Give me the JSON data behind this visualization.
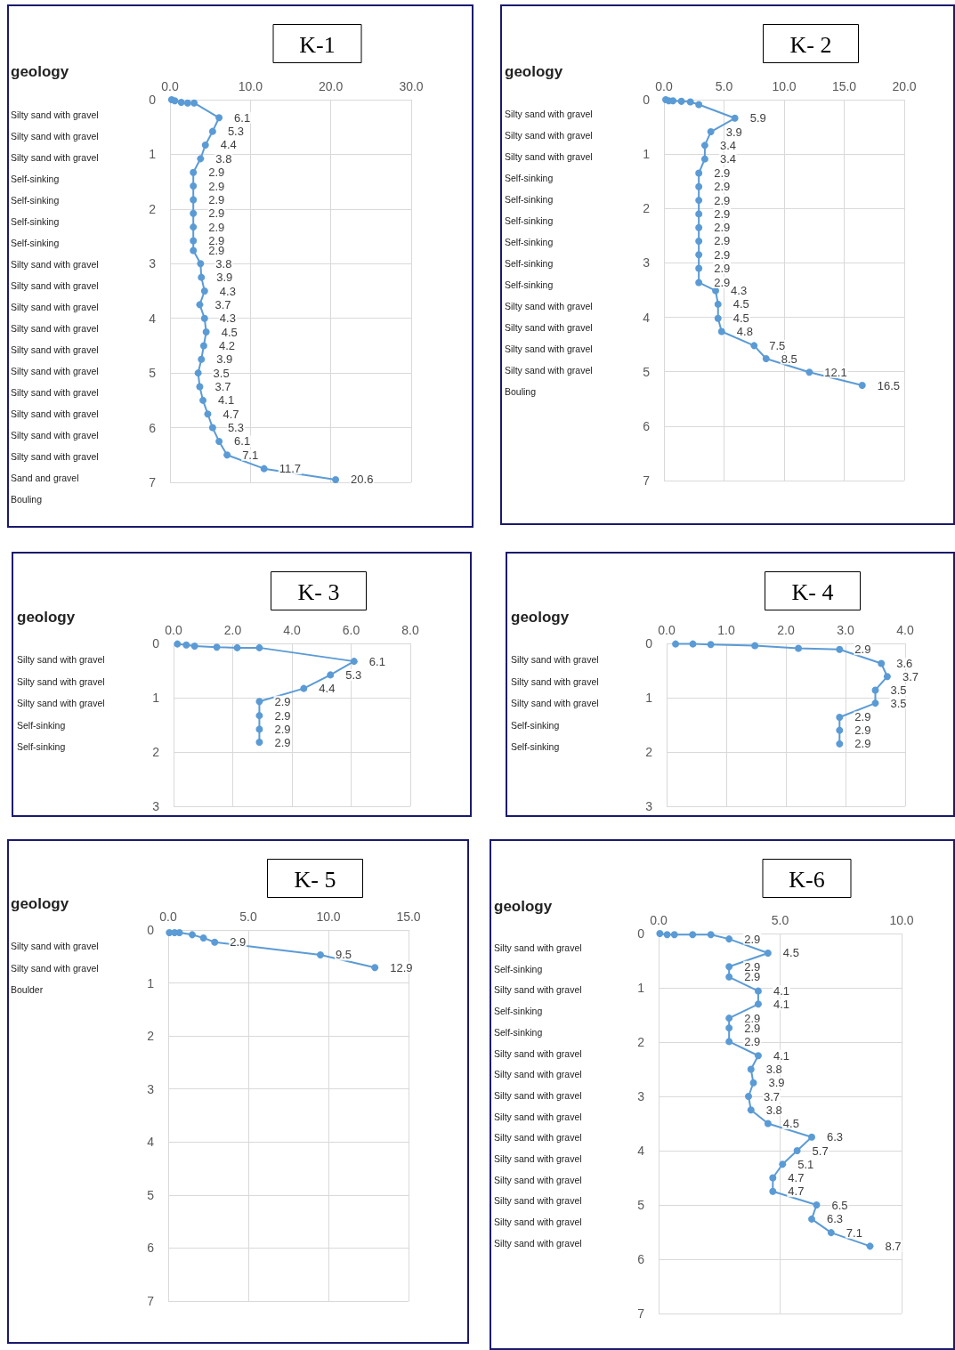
{
  "chart_data": [
    {
      "type": "line",
      "orientation": "horizontal",
      "title": "K-1",
      "annotations": [
        "geology",
        "Silty sand with gravel",
        "Silty sand with gravel",
        "Silty sand with gravel",
        "Self-sinking",
        "Self-sinking",
        "Self-sinking",
        "Self-sinking",
        "Silty sand with gravel",
        "Silty sand with gravel",
        "Silty sand with gravel",
        "Silty sand with gravel",
        "Silty sand with gravel",
        "Silty sand with gravel",
        "Silty sand with gravel",
        "Silty sand with gravel",
        "Silty sand with gravel",
        "Silty sand with gravel",
        "Sand and gravel",
        "Bouling"
      ],
      "series": [
        {
          "color": "#5b9bd5",
          "values": [
            0.2,
            0.6,
            1.4,
            2.2,
            3.0,
            6.1,
            5.3,
            4.4,
            3.8,
            2.9,
            2.9,
            2.9,
            2.9,
            2.9,
            2.9,
            2.9,
            3.8,
            3.9,
            4.3,
            3.7,
            4.3,
            4.5,
            4.2,
            3.9,
            3.5,
            3.7,
            4.1,
            4.7,
            5.3,
            6.1,
            7.1,
            11.7,
            20.6
          ],
          "x": [
            0,
            0.02,
            0.05,
            0.06,
            0.06,
            0.33,
            0.58,
            0.83,
            1.08,
            1.33,
            1.58,
            1.83,
            2.08,
            2.33,
            2.58,
            2.76,
            3.0,
            3.25,
            3.5,
            3.75,
            4.0,
            4.25,
            4.5,
            4.75,
            5.0,
            5.25,
            5.5,
            5.75,
            6.0,
            6.25,
            6.5,
            6.75,
            6.95
          ],
          "value_labels": [
            null,
            null,
            null,
            null,
            null,
            "6.1",
            "5.3",
            "4.4",
            "3.8",
            "2.9",
            "2.9",
            "2.9",
            "2.9",
            "2.9",
            "2.9",
            "2.9",
            "3.8",
            "3.9",
            "4.3",
            "3.7",
            "4.3",
            "4.5",
            "4.2",
            "3.9",
            "3.5",
            "3.7",
            "4.1",
            "4.7",
            "5.3",
            "6.1",
            "7.1",
            "11.7",
            "20.6"
          ]
        }
      ],
      "xlim": [
        0,
        30
      ],
      "xticks": [
        {
          "value": 0,
          "label": "0.0"
        },
        {
          "value": 10,
          "label": "10.0"
        },
        {
          "value": 20,
          "label": "20.0"
        },
        {
          "value": 30,
          "label": "30.0"
        }
      ],
      "ylim": [
        7,
        0
      ],
      "yticks": [
        0,
        1,
        2,
        3,
        4,
        5,
        6,
        7
      ],
      "grid": true,
      "marker": "circle",
      "line_style": "solid"
    },
    {
      "type": "line",
      "orientation": "horizontal",
      "title": "K- 2",
      "annotations": [
        "geology",
        "Silty sand with gravel",
        "Silty sand with gravel",
        "Silty sand with gravel",
        "Self-sinking",
        "Self-sinking",
        "Self-sinking",
        "Self-sinking",
        "Self-sinking",
        "Self-sinking",
        "Silty sand with gravel",
        "Silty sand with gravel",
        "Silty sand with gravel",
        "Silty sand with gravel",
        "Bouling"
      ],
      "series": [
        {
          "color": "#5b9bd5",
          "values": [
            0.15,
            0.4,
            0.75,
            1.45,
            2.2,
            2.9,
            5.9,
            3.9,
            3.4,
            3.4,
            2.9,
            2.9,
            2.9,
            2.9,
            2.9,
            2.9,
            2.9,
            2.9,
            2.9,
            4.3,
            4.5,
            4.5,
            4.8,
            7.5,
            8.5,
            12.1,
            16.5
          ],
          "x": [
            0,
            0.02,
            0.02,
            0.03,
            0.04,
            0.09,
            0.34,
            0.59,
            0.84,
            1.09,
            1.35,
            1.6,
            1.85,
            2.1,
            2.35,
            2.6,
            2.85,
            3.1,
            3.36,
            3.51,
            3.76,
            4.02,
            4.26,
            4.52,
            4.76,
            5.01,
            5.25
          ],
          "value_labels": [
            null,
            null,
            null,
            null,
            null,
            null,
            "5.9",
            "3.9",
            "3.4",
            "3.4",
            "2.9",
            "2.9",
            "2.9",
            "2.9",
            "2.9",
            "2.9",
            "2.9",
            "2.9",
            "2.9",
            "4.3",
            "4.5",
            "4.5",
            "4.8",
            "7.5",
            "8.5",
            "12.1",
            "16.5"
          ]
        }
      ],
      "xlim": [
        0,
        20
      ],
      "xticks": [
        {
          "value": 0,
          "label": "0.0"
        },
        {
          "value": 5,
          "label": "5.0"
        },
        {
          "value": 10,
          "label": "10.0"
        },
        {
          "value": 15,
          "label": "15.0"
        },
        {
          "value": 20,
          "label": "20.0"
        }
      ],
      "ylim": [
        7,
        0
      ],
      "yticks": [
        0,
        1,
        2,
        3,
        4,
        5,
        6,
        7
      ],
      "grid": true,
      "marker": "circle",
      "line_style": "solid"
    },
    {
      "type": "line",
      "orientation": "horizontal",
      "title": "K- 3",
      "annotations": [
        "geology",
        "Silty sand with gravel",
        "Silty sand with gravel",
        "Silty sand with gravel",
        "Self-sinking",
        "Self-sinking"
      ],
      "series": [
        {
          "color": "#5b9bd5",
          "values": [
            0.13,
            0.43,
            0.71,
            1.46,
            2.15,
            2.9,
            6.1,
            5.3,
            4.4,
            2.9,
            2.9,
            2.9,
            2.9
          ],
          "x": [
            0.01,
            0.03,
            0.05,
            0.07,
            0.08,
            0.08,
            0.33,
            0.58,
            0.83,
            1.07,
            1.33,
            1.58,
            1.82
          ],
          "value_labels": [
            null,
            null,
            null,
            null,
            null,
            null,
            "6.1",
            "5.3",
            "4.4",
            "2.9",
            "2.9",
            "2.9",
            "2.9"
          ]
        }
      ],
      "xlim": [
        0,
        8
      ],
      "xticks": [
        {
          "value": 0,
          "label": "0.0"
        },
        {
          "value": 2,
          "label": "2.0"
        },
        {
          "value": 4,
          "label": "4.0"
        },
        {
          "value": 6,
          "label": "6.0"
        },
        {
          "value": 8,
          "label": "8.0"
        }
      ],
      "ylim": [
        3,
        0
      ],
      "yticks": [
        0,
        1,
        2,
        3
      ],
      "grid": true,
      "marker": "circle",
      "line_style": "solid"
    },
    {
      "type": "line",
      "orientation": "horizontal",
      "title": "K- 4",
      "annotations": [
        "geology",
        "Silty sand with gravel",
        "Silty sand with gravel",
        "Silty sand with gravel",
        "Self-sinking",
        "Self-sinking"
      ],
      "series": [
        {
          "color": "#5b9bd5",
          "values": [
            0.15,
            0.44,
            0.74,
            1.48,
            2.21,
            2.9,
            3.6,
            3.7,
            3.5,
            3.5,
            2.9,
            2.9,
            2.9
          ],
          "x": [
            0.01,
            0.01,
            0.02,
            0.04,
            0.09,
            0.11,
            0.37,
            0.61,
            0.86,
            1.1,
            1.36,
            1.6,
            1.85
          ],
          "value_labels": [
            null,
            null,
            null,
            null,
            null,
            "2.9",
            "3.6",
            "3.7",
            "3.5",
            "3.5",
            "2.9",
            "2.9",
            "2.9"
          ]
        }
      ],
      "xlim": [
        0,
        4
      ],
      "xticks": [
        {
          "value": 0,
          "label": "0.0"
        },
        {
          "value": 1,
          "label": "1.0"
        },
        {
          "value": 2,
          "label": "2.0"
        },
        {
          "value": 3,
          "label": "3.0"
        },
        {
          "value": 4,
          "label": "4.0"
        }
      ],
      "ylim": [
        3,
        0
      ],
      "yticks": [
        0,
        1,
        2,
        3
      ],
      "grid": true,
      "marker": "circle",
      "line_style": "solid"
    },
    {
      "type": "line",
      "orientation": "horizontal",
      "title": "K- 5",
      "annotations": [
        "geology",
        "Silty sand with gravel",
        "Silty sand with gravel",
        "Boulder"
      ],
      "series": [
        {
          "color": "#5b9bd5",
          "values": [
            0.07,
            0.4,
            0.7,
            1.5,
            2.2,
            2.9,
            9.5,
            12.9
          ],
          "x": [
            0.05,
            0.05,
            0.05,
            0.09,
            0.15,
            0.23,
            0.47,
            0.71
          ],
          "value_labels": [
            null,
            null,
            null,
            null,
            null,
            "2.9",
            "9.5",
            "12.9"
          ]
        }
      ],
      "xlim": [
        0,
        15
      ],
      "xticks": [
        {
          "value": 0,
          "label": "0.0"
        },
        {
          "value": 5,
          "label": "5.0"
        },
        {
          "value": 10,
          "label": "10.0"
        },
        {
          "value": 15,
          "label": "15.0"
        }
      ],
      "ylim": [
        7,
        0
      ],
      "yticks": [
        0,
        1,
        2,
        3,
        4,
        5,
        6,
        7
      ],
      "grid": true,
      "marker": "circle",
      "line_style": "solid"
    },
    {
      "type": "line",
      "orientation": "horizontal",
      "title": "K-6",
      "annotations": [
        "geology",
        "Silty sand with gravel",
        "Self-sinking",
        "Silty sand with gravel",
        "Self-sinking",
        "Self-sinking",
        "Silty sand with gravel",
        "Silty sand with gravel",
        "Silty sand with gravel",
        "Silty sand with gravel",
        "Silty sand with gravel",
        "Silty sand with gravel",
        "Silty sand with gravel",
        "Silty sand with gravel",
        "Silty sand with gravel",
        "Silty sand with gravel"
      ],
      "series": [
        {
          "color": "#5b9bd5",
          "values": [
            0.05,
            0.35,
            0.65,
            1.4,
            2.15,
            2.9,
            4.5,
            2.9,
            2.9,
            4.1,
            4.1,
            2.9,
            2.9,
            2.9,
            4.1,
            3.8,
            3.9,
            3.7,
            3.8,
            4.5,
            6.3,
            5.7,
            5.1,
            4.7,
            4.7,
            6.5,
            6.3,
            7.1,
            8.7
          ],
          "x": [
            0,
            0.02,
            0.02,
            0.02,
            0.02,
            0.1,
            0.36,
            0.61,
            0.8,
            1.06,
            1.3,
            1.56,
            1.74,
            1.99,
            2.25,
            2.5,
            2.75,
            3.0,
            3.25,
            3.5,
            3.75,
            4.0,
            4.25,
            4.5,
            4.75,
            5.0,
            5.26,
            5.51,
            5.76
          ],
          "value_labels": [
            null,
            null,
            null,
            null,
            null,
            "2.9",
            "4.5",
            "2.9",
            "2.9",
            "4.1",
            "4.1",
            "2.9",
            "2.9",
            "2.9",
            "4.1",
            "3.8",
            "3.9",
            "3.7",
            "3.8",
            "4.5",
            "6.3",
            "5.7",
            "5.1",
            "4.7",
            "4.7",
            "6.5",
            "6.3",
            "7.1",
            "8.7"
          ]
        }
      ],
      "xlim": [
        0,
        10
      ],
      "xticks": [
        {
          "value": 0,
          "label": "0.0"
        },
        {
          "value": 5,
          "label": "5.0"
        },
        {
          "value": 10,
          "label": "10.0"
        }
      ],
      "ylim": [
        7,
        0
      ],
      "yticks": [
        0,
        1,
        2,
        3,
        4,
        5,
        6,
        7
      ],
      "grid": true,
      "marker": "circle",
      "line_style": "solid"
    }
  ]
}
